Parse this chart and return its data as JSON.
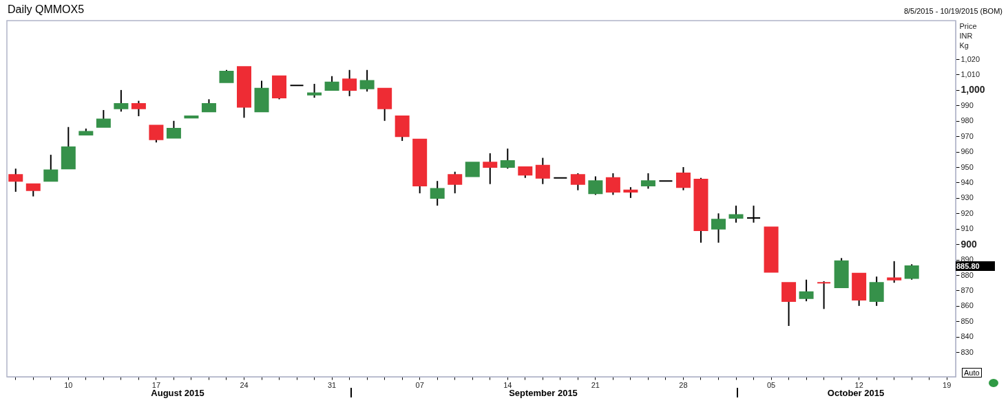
{
  "chart_data": {
    "type": "candlestick",
    "title": "Daily QMMOX5",
    "subtitle": "8/5/2015 - 10/19/2015 (BOM)",
    "ylabel": "Price\nINR\nKg",
    "categories": [
      null,
      null,
      null,
      "10",
      null,
      null,
      null,
      null,
      "17",
      null,
      null,
      null,
      null,
      "24",
      null,
      null,
      null,
      null,
      "31",
      null,
      null,
      null,
      null,
      "07",
      null,
      null,
      null,
      null,
      "14",
      null,
      null,
      null,
      null,
      "21",
      null,
      null,
      null,
      null,
      "28",
      null,
      null,
      null,
      null,
      "05",
      null,
      null,
      null,
      null,
      "12",
      null,
      null,
      null,
      null,
      "19"
    ],
    "ohlc": [
      [
        945,
        949,
        934,
        941
      ],
      [
        939,
        939,
        931,
        935
      ],
      [
        941,
        958,
        941,
        948
      ],
      [
        949,
        976,
        949,
        963
      ],
      [
        971,
        975,
        971,
        973
      ],
      [
        976,
        987,
        976,
        981
      ],
      [
        988,
        1000,
        986,
        991
      ],
      [
        991,
        993,
        983,
        988
      ],
      [
        977,
        977,
        966,
        968
      ],
      [
        969,
        980,
        969,
        975
      ],
      [
        982,
        983,
        982,
        983
      ],
      [
        986,
        994,
        986,
        991
      ],
      [
        1005,
        1013,
        1005,
        1012
      ],
      [
        1015,
        1015,
        982,
        989
      ],
      [
        986,
        1006,
        986,
        1001
      ],
      [
        1009,
        1009,
        994,
        995
      ],
      [
        1003,
        1003,
        1003,
        1003
      ],
      [
        997,
        1004,
        995,
        998
      ],
      [
        1000,
        1009,
        1000,
        1005
      ],
      [
        1007,
        1013,
        996,
        1000
      ],
      [
        1001,
        1013,
        999,
        1006
      ],
      [
        1001,
        1001,
        980,
        988
      ],
      [
        983,
        983,
        967,
        970
      ],
      [
        968,
        968,
        933,
        938
      ],
      [
        930,
        941,
        925,
        936
      ],
      [
        945,
        947,
        933,
        939
      ],
      [
        944,
        953,
        944,
        953
      ],
      [
        953,
        959,
        939,
        950
      ],
      [
        950,
        962,
        949,
        954
      ],
      [
        950,
        950,
        943,
        945
      ],
      [
        951,
        956,
        939,
        943
      ],
      [
        943,
        943,
        943,
        943
      ],
      [
        945,
        946,
        935,
        939
      ],
      [
        933,
        944,
        932,
        941
      ],
      [
        943,
        946,
        932,
        934
      ],
      [
        935,
        937,
        930,
        934
      ],
      [
        938,
        946,
        936,
        941
      ],
      [
        941,
        941,
        941,
        941
      ],
      [
        946,
        950,
        935,
        937
      ],
      [
        942,
        943,
        901,
        909
      ],
      [
        910,
        920,
        901,
        916
      ],
      [
        917,
        925,
        914,
        919
      ],
      [
        917,
        925,
        914,
        917
      ],
      [
        911,
        911,
        882,
        882
      ],
      [
        875,
        875,
        847,
        863
      ],
      [
        865,
        877,
        863,
        869
      ],
      [
        875,
        876,
        858,
        875
      ],
      [
        872,
        891,
        872,
        889
      ],
      [
        881,
        881,
        860,
        864
      ],
      [
        863,
        879,
        860,
        875
      ],
      [
        878,
        889,
        875,
        877
      ],
      [
        878,
        887,
        877,
        885.8
      ],
      null,
      null
    ],
    "colors": [
      "#ee2c34",
      "#ee2c34",
      "#36914a",
      "#36914a",
      "#36914a",
      "#36914a",
      "#36914a",
      "#ee2c34",
      "#ee2c34",
      "#36914a",
      "#36914a",
      "#36914a",
      "#36914a",
      "#ee2c34",
      "#36914a",
      "#ee2c34",
      "#000000",
      "#36914a",
      "#36914a",
      "#ee2c34",
      "#36914a",
      "#ee2c34",
      "#ee2c34",
      "#ee2c34",
      "#36914a",
      "#ee2c34",
      "#36914a",
      "#ee2c34",
      "#36914a",
      "#ee2c34",
      "#ee2c34",
      "#000000",
      "#ee2c34",
      "#36914a",
      "#ee2c34",
      "#ee2c34",
      "#36914a",
      "#000000",
      "#ee2c34",
      "#ee2c34",
      "#36914a",
      "#36914a",
      "#000000",
      "#ee2c34",
      "#ee2c34",
      "#36914a",
      "#ee2c34",
      "#36914a",
      "#ee2c34",
      "#36914a",
      "#ee2c34",
      "#36914a",
      null,
      null
    ],
    "ylim": [
      814,
      1045
    ],
    "yticks": [
      830,
      840,
      850,
      860,
      870,
      880,
      890,
      900,
      910,
      920,
      930,
      940,
      950,
      960,
      970,
      980,
      990,
      {
        "value": 1000,
        "label": "1,000"
      },
      {
        "value": 1010,
        "label": "1,010"
      },
      {
        "value": 1020,
        "label": "1,020"
      }
    ],
    "grid": false,
    "annotations": [
      "August 2015",
      "September 2015",
      "October 2015",
      "885.80",
      "Auto"
    ]
  }
}
